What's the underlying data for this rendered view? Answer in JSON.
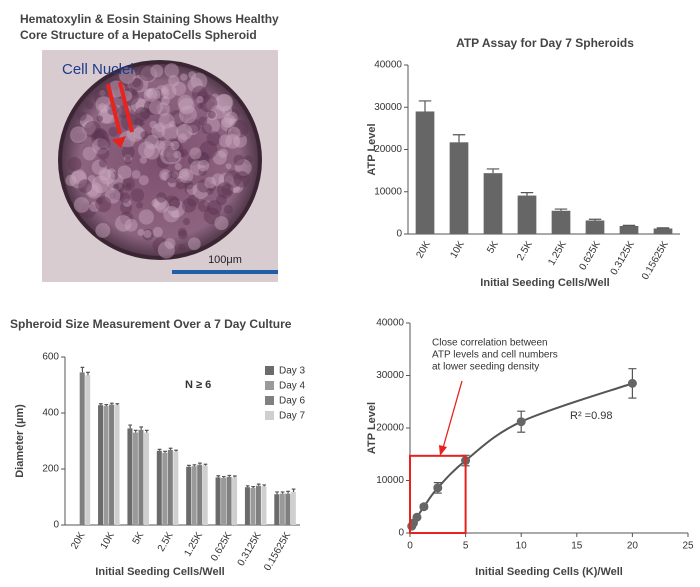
{
  "image_panel": {
    "title": [
      "Hematoxylin & Eosin Staining Shows Healthy",
      "Core Structure of a HepatoCells Spheroid"
    ],
    "label": "Cell Nuclei",
    "scale_bar": "100μm"
  },
  "chart_data": [
    {
      "type": "bar",
      "title": "ATP Assay for Day 7 Spheroids",
      "categories": [
        "20K",
        "10K",
        "5K",
        "2.5K",
        "1.25K",
        "0.625K",
        "0.3125K",
        "0.15625K"
      ],
      "values": [
        29000,
        21700,
        14400,
        9100,
        5500,
        3200,
        1900,
        1300
      ],
      "errors": [
        2500,
        1800,
        1000,
        700,
        400,
        300,
        150,
        150
      ],
      "color": "#666666",
      "ylabel": "ATP Level",
      "xlabel": "Initial Seeding Cells/Well",
      "ylim": [
        0,
        40000
      ],
      "yticks": [
        0,
        10000,
        20000,
        30000,
        40000
      ]
    },
    {
      "type": "grouped_bar",
      "title": "Spheroid Size Measurement Over a 7 Day Culture",
      "categories": [
        "20K",
        "10K",
        "5K",
        "2.5K",
        "1.25K",
        "0.625K",
        "0.3125K",
        "0.15625K"
      ],
      "series": [
        {
          "name": "Day 3",
          "color": "#6b6b6b",
          "values": [
            null,
            428,
            345,
            265,
            208,
            170,
            135,
            110
          ],
          "errors": [
            null,
            5,
            12,
            5,
            5,
            6,
            5,
            8
          ]
        },
        {
          "name": "Day 4",
          "color": "#9a9a9a",
          "values": [
            null,
            425,
            330,
            258,
            210,
            168,
            132,
            112
          ],
          "errors": [
            null,
            5,
            8,
            5,
            5,
            5,
            5,
            6
          ]
        },
        {
          "name": "Day 6",
          "color": "#808080",
          "values": [
            545,
            430,
            340,
            268,
            215,
            172,
            140,
            112
          ],
          "errors": [
            18,
            5,
            10,
            6,
            6,
            5,
            6,
            8
          ]
        },
        {
          "name": "Day 7",
          "color": "#cfcfcf",
          "values": [
            535,
            428,
            330,
            262,
            212,
            170,
            138,
            118
          ],
          "errors": [
            10,
            5,
            8,
            5,
            5,
            5,
            5,
            10
          ]
        }
      ],
      "annotation": "N ≥ 6",
      "ylabel": "Diameter (µm)",
      "xlabel": "Initial Seeding Cells/Well",
      "ylim": [
        0,
        600
      ],
      "yticks": [
        0,
        200,
        400,
        600
      ],
      "legend": "upper right"
    },
    {
      "type": "scatter",
      "x": [
        0.15625,
        0.3125,
        0.625,
        1.25,
        2.5,
        5,
        10,
        20
      ],
      "values": [
        1300,
        1900,
        3000,
        5000,
        8600,
        13800,
        21200,
        28500
      ],
      "errors": [
        150,
        200,
        300,
        400,
        1000,
        1000,
        2000,
        2800
      ],
      "color": "#666666",
      "trendline": true,
      "annotation": [
        "Close correlation between",
        "ATP levels and cell numbers",
        "at lower seeding density"
      ],
      "r2_label": "R² =0.98",
      "highlight": {
        "xlim": [
          0,
          5
        ],
        "ylim": [
          0,
          14700
        ],
        "color": "#e8231d"
      },
      "ylabel": "ATP Level",
      "xlabel": "Initial Seeding Cells (K)/Well",
      "xlim": [
        0,
        25
      ],
      "xticks": [
        0,
        5,
        10,
        15,
        20,
        25
      ],
      "ylim": [
        0,
        40000
      ],
      "yticks": [
        0,
        10000,
        20000,
        30000,
        40000
      ]
    }
  ]
}
